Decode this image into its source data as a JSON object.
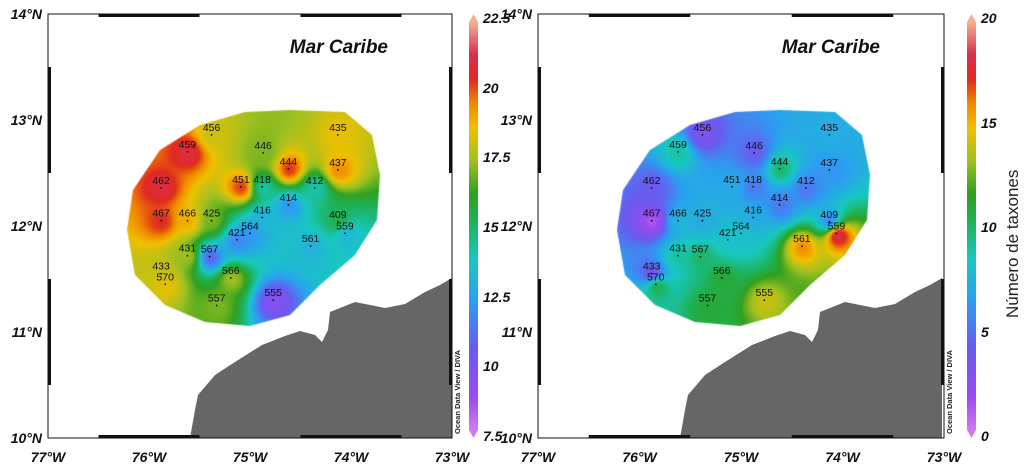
{
  "axes": {
    "lat_labels": [
      "14°N",
      "13°N",
      "12°N",
      "11°N",
      "10°N"
    ],
    "lon_labels": [
      "77°W",
      "76°W",
      "75°W",
      "74°W",
      "73°W"
    ]
  },
  "watermark": "Ocean Data View / DIVA",
  "land_color": "#666666",
  "chart_data": [
    {
      "type": "heatmap",
      "title": "Mar Caribe",
      "xlim": [
        -77,
        -73
      ],
      "ylim": [
        10,
        14
      ],
      "colorbar": {
        "min": 7.5,
        "max": 22.5,
        "ticks": [
          "22.5",
          "20",
          "17.5",
          "15",
          "12.5",
          "10",
          "7.5"
        ],
        "label": ""
      },
      "stations": [
        {
          "id": "456",
          "lon": -75.38,
          "lat": 12.86,
          "value": 18
        },
        {
          "id": "459",
          "lon": -75.62,
          "lat": 12.7,
          "value": 21
        },
        {
          "id": "446",
          "lon": -74.87,
          "lat": 12.69,
          "value": 17
        },
        {
          "id": "444",
          "lon": -74.62,
          "lat": 12.54,
          "value": 20.5
        },
        {
          "id": "435",
          "lon": -74.13,
          "lat": 12.86,
          "value": 18.5
        },
        {
          "id": "437",
          "lon": -74.13,
          "lat": 12.53,
          "value": 19.5
        },
        {
          "id": "462",
          "lon": -75.88,
          "lat": 12.36,
          "value": 21
        },
        {
          "id": "451",
          "lon": -75.09,
          "lat": 12.37,
          "value": 20.5
        },
        {
          "id": "418",
          "lon": -74.88,
          "lat": 12.37,
          "value": 14
        },
        {
          "id": "412",
          "lon": -74.36,
          "lat": 12.36,
          "value": 14
        },
        {
          "id": "414",
          "lon": -74.62,
          "lat": 12.2,
          "value": 12
        },
        {
          "id": "467",
          "lon": -75.88,
          "lat": 12.05,
          "value": 20.5
        },
        {
          "id": "466",
          "lon": -75.62,
          "lat": 12.05,
          "value": 19
        },
        {
          "id": "425",
          "lon": -75.38,
          "lat": 12.05,
          "value": 17
        },
        {
          "id": "416",
          "lon": -74.88,
          "lat": 12.08,
          "value": 13
        },
        {
          "id": "564",
          "lon": -75.0,
          "lat": 11.93,
          "value": 12
        },
        {
          "id": "409",
          "lon": -74.13,
          "lat": 12.04,
          "value": 15.5
        },
        {
          "id": "561",
          "lon": -74.4,
          "lat": 11.81,
          "value": 13
        },
        {
          "id": "559",
          "lon": -74.06,
          "lat": 11.93,
          "value": 13
        },
        {
          "id": "421",
          "lon": -75.13,
          "lat": 11.87,
          "value": 11.5
        },
        {
          "id": "431",
          "lon": -75.62,
          "lat": 11.72,
          "value": 17.5
        },
        {
          "id": "567",
          "lon": -75.4,
          "lat": 11.71,
          "value": 10.5
        },
        {
          "id": "433",
          "lon": -75.88,
          "lat": 11.55,
          "value": 18
        },
        {
          "id": "566",
          "lon": -75.19,
          "lat": 11.51,
          "value": 17.5
        },
        {
          "id": "570",
          "lon": -75.84,
          "lat": 11.45,
          "value": 18.5
        },
        {
          "id": "555",
          "lon": -74.77,
          "lat": 11.3,
          "value": 9.5
        },
        {
          "id": "557",
          "lon": -75.33,
          "lat": 11.25,
          "value": 17
        }
      ]
    },
    {
      "type": "heatmap",
      "title": "Mar Caribe",
      "xlim": [
        -77,
        -73
      ],
      "ylim": [
        10,
        14
      ],
      "colorbar": {
        "min": 0,
        "max": 20,
        "ticks": [
          "20",
          "15",
          "10",
          "5",
          "0"
        ],
        "label": "Número de taxones"
      },
      "stations": [
        {
          "id": "456",
          "lon": -75.38,
          "lat": 12.86,
          "value": 3
        },
        {
          "id": "459",
          "lon": -75.62,
          "lat": 12.7,
          "value": 9
        },
        {
          "id": "446",
          "lon": -74.87,
          "lat": 12.69,
          "value": 4
        },
        {
          "id": "444",
          "lon": -74.62,
          "lat": 12.54,
          "value": 10
        },
        {
          "id": "435",
          "lon": -74.13,
          "lat": 12.86,
          "value": 7
        },
        {
          "id": "437",
          "lon": -74.13,
          "lat": 12.53,
          "value": 6
        },
        {
          "id": "462",
          "lon": -75.88,
          "lat": 12.36,
          "value": 4
        },
        {
          "id": "451",
          "lon": -75.09,
          "lat": 12.37,
          "value": 7
        },
        {
          "id": "418",
          "lon": -74.88,
          "lat": 12.37,
          "value": 5
        },
        {
          "id": "412",
          "lon": -74.36,
          "lat": 12.36,
          "value": 5
        },
        {
          "id": "414",
          "lon": -74.62,
          "lat": 12.2,
          "value": 5
        },
        {
          "id": "467",
          "lon": -75.88,
          "lat": 12.05,
          "value": 1
        },
        {
          "id": "466",
          "lon": -75.62,
          "lat": 12.05,
          "value": 7.5
        },
        {
          "id": "425",
          "lon": -75.38,
          "lat": 12.05,
          "value": 7
        },
        {
          "id": "416",
          "lon": -74.88,
          "lat": 12.08,
          "value": 7
        },
        {
          "id": "564",
          "lon": -75.0,
          "lat": 11.93,
          "value": 8
        },
        {
          "id": "409",
          "lon": -74.13,
          "lat": 12.04,
          "value": 5
        },
        {
          "id": "561",
          "lon": -74.4,
          "lat": 11.81,
          "value": 16
        },
        {
          "id": "559",
          "lon": -74.06,
          "lat": 11.93,
          "value": 19
        },
        {
          "id": "421",
          "lon": -75.13,
          "lat": 11.87,
          "value": 8
        },
        {
          "id": "431",
          "lon": -75.62,
          "lat": 11.72,
          "value": 9
        },
        {
          "id": "567",
          "lon": -75.4,
          "lat": 11.71,
          "value": 10
        },
        {
          "id": "433",
          "lon": -75.88,
          "lat": 11.55,
          "value": 3
        },
        {
          "id": "566",
          "lon": -75.19,
          "lat": 11.51,
          "value": 11
        },
        {
          "id": "570",
          "lon": -75.84,
          "lat": 11.45,
          "value": 11
        },
        {
          "id": "555",
          "lon": -74.77,
          "lat": 11.3,
          "value": 14
        },
        {
          "id": "557",
          "lon": -75.33,
          "lat": 11.25,
          "value": 11
        }
      ]
    }
  ]
}
